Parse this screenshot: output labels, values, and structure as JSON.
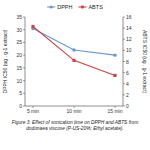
{
  "chart_data": {
    "type": "line",
    "caption": "Figure 3: Effect of sonication time on DPPH and ABTS from\ndodonaea viscose (P-US-20%; Ethyl acetate).",
    "categories": [
      "5 min",
      "10 min",
      "15 min"
    ],
    "ylabel": "DPPH IC50 (ug . g-1 extract)",
    "y2label": "ABTS IC50 (ug . g-1 extract)",
    "ylim": [
      0,
      35
    ],
    "yticks": [
      0,
      5,
      10,
      15,
      20,
      25,
      30,
      35
    ],
    "y2lim": [
      0,
      16
    ],
    "y2ticks": [
      0,
      2,
      4,
      6,
      8,
      10,
      12,
      14,
      16
    ],
    "legend": "top",
    "series": [
      {
        "name": "DPPH",
        "color": "#6699cc",
        "marker": "circle",
        "values": [
          30.5,
          22.0,
          20.0
        ]
      },
      {
        "name": "ABTS",
        "color": "#cc4444",
        "marker": "square",
        "axis": "y2",
        "values": [
          14.3,
          8.2,
          5.5
        ]
      }
    ]
  }
}
